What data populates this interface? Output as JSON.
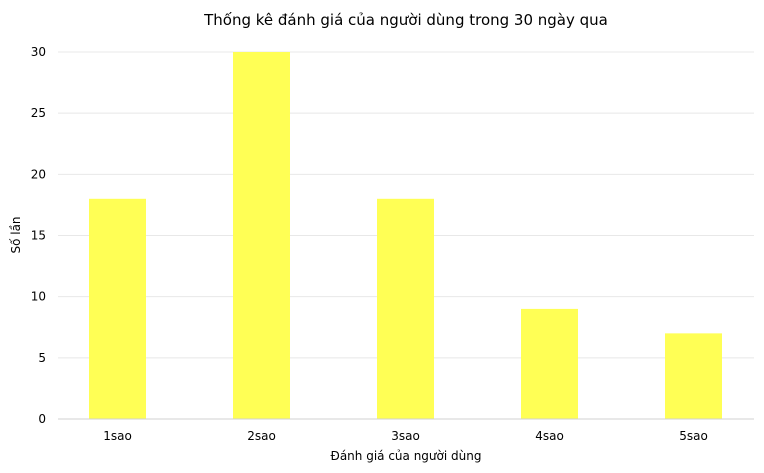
{
  "chart_data": {
    "type": "bar",
    "title": "Thống kê đánh giá của người dùng trong 30 ngày qua",
    "xlabel": "Đánh giá của người dùng",
    "ylabel": "Số lần",
    "categories": [
      "1sao",
      "2sao",
      "3sao",
      "4sao",
      "5sao"
    ],
    "values": [
      18,
      30,
      18,
      9,
      7
    ],
    "ylim": [
      0,
      30
    ],
    "yticks": [
      0,
      5,
      10,
      15,
      20,
      25,
      30
    ],
    "grid": true,
    "bar_color": "#ffff55"
  }
}
